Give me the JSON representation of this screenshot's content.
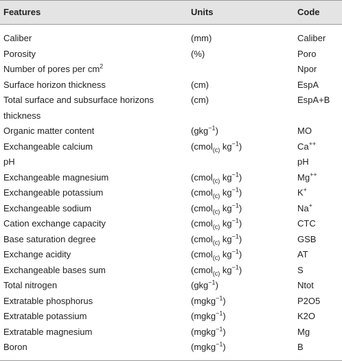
{
  "table": {
    "header": [
      "Features",
      "Units",
      "Code"
    ],
    "rows": [
      [
        [
          "Caliber"
        ],
        [
          "(mm)"
        ],
        [
          "Caliber"
        ]
      ],
      [
        [
          "Porosity"
        ],
        [
          "(%)"
        ],
        [
          "Poro"
        ]
      ],
      [
        [
          "Number of pores per cm",
          {
            "sup": "2"
          }
        ],
        null,
        [
          "Npor"
        ]
      ],
      [
        [
          "Surface horizon thickness"
        ],
        [
          "(cm)"
        ],
        [
          "EspA"
        ]
      ],
      [
        [
          "Total surface and subsurface horizons thickness"
        ],
        [
          "(cm)"
        ],
        [
          "EspA+B"
        ]
      ],
      [
        [
          "Organic matter content"
        ],
        [
          "(gkg",
          {
            "sup": "−1"
          },
          ")"
        ],
        [
          "MO"
        ]
      ],
      [
        [
          "Exchangeable calcium"
        ],
        [
          "(cmol",
          {
            "sub": "(c)"
          },
          " kg",
          {
            "sup": "−1"
          },
          ")"
        ],
        [
          "Ca",
          {
            "sup": "++"
          }
        ]
      ],
      [
        [
          "pH"
        ],
        null,
        [
          "pH"
        ]
      ],
      [
        [
          "Exchangeable magnesium"
        ],
        [
          "(cmol",
          {
            "sub": "(c)"
          },
          " kg",
          {
            "sup": "−1"
          },
          ")"
        ],
        [
          "Mg",
          {
            "sup": "++"
          }
        ]
      ],
      [
        [
          "Exchangeable potassium"
        ],
        [
          "(cmol",
          {
            "sub": "(c)"
          },
          " kg",
          {
            "sup": "−1"
          },
          ")"
        ],
        [
          "K",
          {
            "sup": "+"
          }
        ]
      ],
      [
        [
          "Exchangeable sodium"
        ],
        [
          "(cmol",
          {
            "sub": "(c)"
          },
          " kg",
          {
            "sup": "−1"
          },
          ")"
        ],
        [
          "Na",
          {
            "sup": "+"
          }
        ]
      ],
      [
        [
          "Cation exchange capacity"
        ],
        [
          "(cmol",
          {
            "sub": "(c)"
          },
          " kg",
          {
            "sup": "−1"
          },
          ")"
        ],
        [
          "CTC"
        ]
      ],
      [
        [
          "Base saturation degree"
        ],
        [
          "(cmol",
          {
            "sub": "(c)"
          },
          " kg",
          {
            "sup": "−1"
          },
          ")"
        ],
        [
          "GSB"
        ]
      ],
      [
        [
          "Exchange acidity"
        ],
        [
          "(cmol",
          {
            "sub": "(c)"
          },
          " kg",
          {
            "sup": "−1"
          },
          ")"
        ],
        [
          "AT"
        ]
      ],
      [
        [
          "Exchangeable bases sum"
        ],
        [
          "(cmol",
          {
            "sub": "(c)"
          },
          " kg",
          {
            "sup": "−1"
          },
          ")"
        ],
        [
          "S"
        ]
      ],
      [
        [
          "Total nitrogen"
        ],
        [
          "(gkg",
          {
            "sup": "−1"
          },
          ")"
        ],
        [
          "Ntot"
        ]
      ],
      [
        [
          "Extratable phosphorus"
        ],
        [
          "(mgkg",
          {
            "sup": "−1"
          },
          ")"
        ],
        [
          "P2O5"
        ]
      ],
      [
        [
          "Extratable potassium"
        ],
        [
          "(mgkg",
          {
            "sup": "−1"
          },
          ")"
        ],
        [
          "K2O"
        ]
      ],
      [
        [
          "Extratable magnesium"
        ],
        [
          "(mgkg",
          {
            "sup": "−1"
          },
          ")"
        ],
        [
          "Mg"
        ]
      ],
      [
        [
          "Boron"
        ],
        [
          "(mgkg",
          {
            "sup": "−1"
          },
          ")"
        ],
        [
          "B"
        ]
      ]
    ]
  }
}
